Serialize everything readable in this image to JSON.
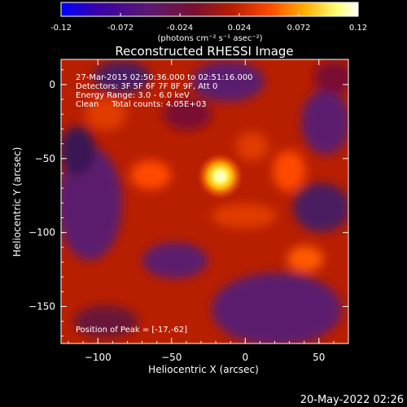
{
  "colorbar": {
    "ticks": [
      "-0.12",
      "-0.072",
      "-0.024",
      "0.024",
      "0.072",
      "0.12"
    ],
    "unit_label": "(photons cm⁻² s⁻¹ asec⁻²)",
    "stops": [
      "#0000ff",
      "#3a00a8",
      "#5c1a6e",
      "#7a1030",
      "#b81f00",
      "#ff4a00",
      "#ffae00",
      "#ffff7a",
      "#ffffff"
    ]
  },
  "image": {
    "title": "Reconstructed RHESSI Image",
    "info_lines": [
      "27-Mar-2015 02:50:36.000 to 02:51:16.000",
      "Detectors: 3F 5F 6F 7F 8F 9F, Att 0",
      "Energy Range: 3.0 - 6.0 keV",
      "Clean     Total counts: 4.05E+03"
    ],
    "peak_text": "Position of Peak = [-17,-62]",
    "x_label": "Heliocentric X (arcsec)",
    "y_label": "Heliocentric Y (arcsec)",
    "x_ticks": [
      "−100",
      "−50",
      "0",
      "50"
    ],
    "y_ticks": [
      "0",
      "−50",
      "−100",
      "−150"
    ],
    "x_range": [
      -125,
      70
    ],
    "y_range": [
      -175,
      17
    ],
    "peak": {
      "x": -17,
      "y": -62
    }
  },
  "footer": {
    "date": "20-May-2022 02:26"
  }
}
